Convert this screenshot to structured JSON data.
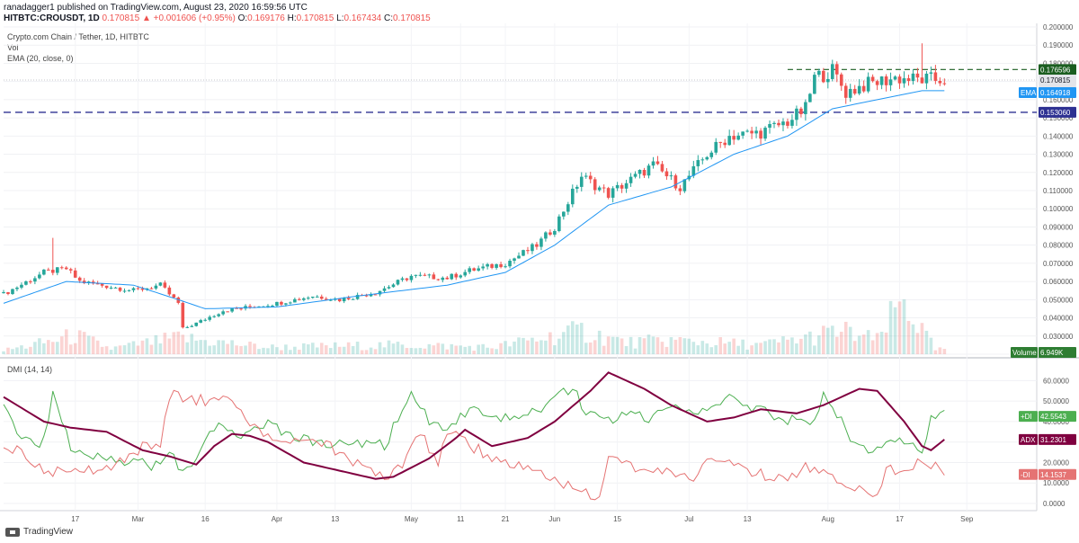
{
  "header": {
    "published": "ranadagger1 published on TradingView.com, August 23, 2020 16:59:56 UTC",
    "symbol": "HITBTC:CROUSDT, 1D",
    "price": "0.170815",
    "change": "▲ +0.001606 (+0.95%)",
    "o_label": "O:",
    "o": "0.169176",
    "h_label": "H:",
    "h": "0.170815",
    "l_label": "L:",
    "l": "0.167434",
    "c_label": "C:",
    "c": "0.170815"
  },
  "legend": {
    "title": "Crypto.com Chain / Tether, 1D, HITBTC",
    "vol": "Vol",
    "ema": "EMA (20, close, 0)",
    "dmi": "DMI (14, 14)"
  },
  "footer": {
    "brand": "TradingView"
  },
  "colors": {
    "up": "#26a69a",
    "down": "#ef5350",
    "ema": "#2196f3",
    "plus_di": "#4caf50",
    "minus_di": "#e57373",
    "adx": "#800040",
    "support": "#2e3192",
    "resistance": "#1b5e20"
  },
  "chart_data": [
    {
      "type": "candlestick",
      "pane": "price",
      "ylim": [
        0.02,
        0.2
      ],
      "y_ticks": [
        "0.200000",
        "0.190000",
        "0.180000",
        "0.170000",
        "0.160000",
        "0.150000",
        "0.140000",
        "0.130000",
        "0.120000",
        "0.110000",
        "0.100000",
        "0.090000",
        "0.080000",
        "0.070000",
        "0.060000",
        "0.050000",
        "0.040000",
        "0.030000",
        "0.020000"
      ],
      "x_ticks": [
        "17",
        "Mar",
        "16",
        "Apr",
        "13",
        "May",
        "11",
        "21",
        "Jun",
        "15",
        "Jul",
        "13",
        "Aug",
        "17",
        "Sep"
      ],
      "x_tick_days": [
        17,
        31,
        46,
        62,
        75,
        92,
        103,
        113,
        124,
        138,
        154,
        167,
        185,
        201,
        216
      ],
      "x_range_days": [
        1,
        231
      ],
      "close_anchors": [
        [
          1,
          0.053
        ],
        [
          10,
          0.065
        ],
        [
          15,
          0.067
        ],
        [
          18,
          0.06
        ],
        [
          30,
          0.055
        ],
        [
          36,
          0.058
        ],
        [
          40,
          0.048
        ],
        [
          41,
          0.034
        ],
        [
          44,
          0.037
        ],
        [
          50,
          0.044
        ],
        [
          62,
          0.048
        ],
        [
          70,
          0.052
        ],
        [
          76,
          0.05
        ],
        [
          84,
          0.054
        ],
        [
          92,
          0.063
        ],
        [
          100,
          0.062
        ],
        [
          105,
          0.066
        ],
        [
          113,
          0.07
        ],
        [
          120,
          0.08
        ],
        [
          124,
          0.09
        ],
        [
          130,
          0.118
        ],
        [
          136,
          0.108
        ],
        [
          146,
          0.124
        ],
        [
          152,
          0.112
        ],
        [
          158,
          0.13
        ],
        [
          163,
          0.14
        ],
        [
          170,
          0.142
        ],
        [
          176,
          0.148
        ],
        [
          180,
          0.155
        ],
        [
          182,
          0.172
        ],
        [
          186,
          0.176
        ],
        [
          189,
          0.164
        ],
        [
          193,
          0.168
        ],
        [
          200,
          0.172
        ],
        [
          205,
          0.171
        ],
        [
          209,
          0.171
        ]
      ],
      "ema_anchors": [
        [
          1,
          0.048
        ],
        [
          15,
          0.06
        ],
        [
          30,
          0.058
        ],
        [
          40,
          0.05
        ],
        [
          46,
          0.045
        ],
        [
          62,
          0.046
        ],
        [
          80,
          0.052
        ],
        [
          100,
          0.058
        ],
        [
          113,
          0.065
        ],
        [
          124,
          0.08
        ],
        [
          136,
          0.102
        ],
        [
          150,
          0.112
        ],
        [
          164,
          0.13
        ],
        [
          176,
          0.14
        ],
        [
          186,
          0.155
        ],
        [
          196,
          0.16
        ],
        [
          206,
          0.164918
        ]
      ],
      "volume_anchors": [
        [
          1,
          0.8
        ],
        [
          10,
          2.5
        ],
        [
          17,
          4
        ],
        [
          25,
          1.2
        ],
        [
          40,
          3.5
        ],
        [
          60,
          1.5
        ],
        [
          90,
          2
        ],
        [
          110,
          1.5
        ],
        [
          130,
          5
        ],
        [
          140,
          2.5
        ],
        [
          150,
          3
        ],
        [
          170,
          2
        ],
        [
          180,
          3.5
        ],
        [
          188,
          5
        ],
        [
          196,
          3
        ],
        [
          202,
          12
        ],
        [
          206,
          5
        ],
        [
          209,
          1
        ]
      ],
      "last_price": "0.170815",
      "countdown": "07:00:17",
      "ema_value": "0.164918",
      "ema_tag": "EMA",
      "volume_value": "6.949K",
      "volume_tag": "Volume",
      "resistance": "0.176596",
      "support": "0.153060"
    },
    {
      "type": "line",
      "pane": "dmi",
      "ylim": [
        0,
        65
      ],
      "y_ticks": [
        "60.0000",
        "50.0000",
        "40.0000",
        "30.0000",
        "20.0000",
        "10.0000",
        "0.0000"
      ],
      "series": [
        {
          "name": "+DI",
          "value": "42.5543",
          "anchors": [
            [
              1,
              48
            ],
            [
              5,
              32
            ],
            [
              10,
              30
            ],
            [
              12,
              52
            ],
            [
              16,
              28
            ],
            [
              20,
              25
            ],
            [
              30,
              20
            ],
            [
              36,
              18
            ],
            [
              38,
              25
            ],
            [
              40,
              18
            ],
            [
              44,
              20
            ],
            [
              48,
              38
            ],
            [
              52,
              33
            ],
            [
              60,
              38
            ],
            [
              66,
              33
            ],
            [
              72,
              28
            ],
            [
              80,
              30
            ],
            [
              86,
              28
            ],
            [
              92,
              55
            ],
            [
              96,
              40
            ],
            [
              100,
              38
            ],
            [
              106,
              45
            ],
            [
              110,
              40
            ],
            [
              118,
              44
            ],
            [
              124,
              50
            ],
            [
              128,
              58
            ],
            [
              130,
              46
            ],
            [
              136,
              40
            ],
            [
              140,
              44
            ],
            [
              146,
              42
            ],
            [
              152,
              48
            ],
            [
              156,
              44
            ],
            [
              160,
              47
            ],
            [
              164,
              52
            ],
            [
              168,
              46
            ],
            [
              172,
              44
            ],
            [
              178,
              40
            ],
            [
              182,
              42
            ],
            [
              184,
              52
            ],
            [
              188,
              40
            ],
            [
              190,
              33
            ],
            [
              194,
              25
            ],
            [
              198,
              28
            ],
            [
              202,
              30
            ],
            [
              206,
              25
            ],
            [
              208,
              44
            ],
            [
              211,
              42.5543
            ]
          ]
        },
        {
          "name": "-DI",
          "value": "14.1537",
          "anchors": [
            [
              1,
              28
            ],
            [
              6,
              24
            ],
            [
              10,
              14
            ],
            [
              16,
              18
            ],
            [
              24,
              16
            ],
            [
              30,
              26
            ],
            [
              36,
              30
            ],
            [
              38,
              53
            ],
            [
              44,
              50
            ],
            [
              50,
              52
            ],
            [
              56,
              38
            ],
            [
              64,
              28
            ],
            [
              70,
              32
            ],
            [
              78,
              22
            ],
            [
              86,
              12
            ],
            [
              90,
              18
            ],
            [
              94,
              34
            ],
            [
              98,
              20
            ],
            [
              100,
              36
            ],
            [
              104,
              30
            ],
            [
              110,
              22
            ],
            [
              120,
              15
            ],
            [
              124,
              10
            ],
            [
              130,
              6
            ],
            [
              134,
              4
            ],
            [
              136,
              22
            ],
            [
              140,
              18
            ],
            [
              148,
              16
            ],
            [
              154,
              12
            ],
            [
              160,
              22
            ],
            [
              170,
              14
            ],
            [
              176,
              10
            ],
            [
              180,
              18
            ],
            [
              186,
              12
            ],
            [
              192,
              8
            ],
            [
              196,
              5
            ],
            [
              198,
              18
            ],
            [
              202,
              16
            ],
            [
              206,
              20
            ],
            [
              209,
              18
            ],
            [
              211,
              14.1537
            ]
          ]
        },
        {
          "name": "ADX",
          "value": "31.2301",
          "anchors": [
            [
              1,
              52
            ],
            [
              10,
              40
            ],
            [
              16,
              37
            ],
            [
              24,
              35
            ],
            [
              32,
              26
            ],
            [
              38,
              23
            ],
            [
              44,
              19
            ],
            [
              48,
              28
            ],
            [
              52,
              34
            ],
            [
              56,
              33
            ],
            [
              60,
              30
            ],
            [
              68,
              20
            ],
            [
              76,
              16
            ],
            [
              84,
              12
            ],
            [
              88,
              13
            ],
            [
              96,
              22
            ],
            [
              102,
              32
            ],
            [
              104,
              36
            ],
            [
              110,
              28
            ],
            [
              118,
              32
            ],
            [
              124,
              40
            ],
            [
              132,
              55
            ],
            [
              136,
              64
            ],
            [
              144,
              56
            ],
            [
              150,
              48
            ],
            [
              158,
              40
            ],
            [
              164,
              42
            ],
            [
              170,
              46
            ],
            [
              178,
              44
            ],
            [
              184,
              48
            ],
            [
              192,
              56
            ],
            [
              196,
              55
            ],
            [
              202,
              40
            ],
            [
              206,
              28
            ],
            [
              208,
              26
            ],
            [
              211,
              31.2301
            ]
          ]
        }
      ]
    }
  ]
}
